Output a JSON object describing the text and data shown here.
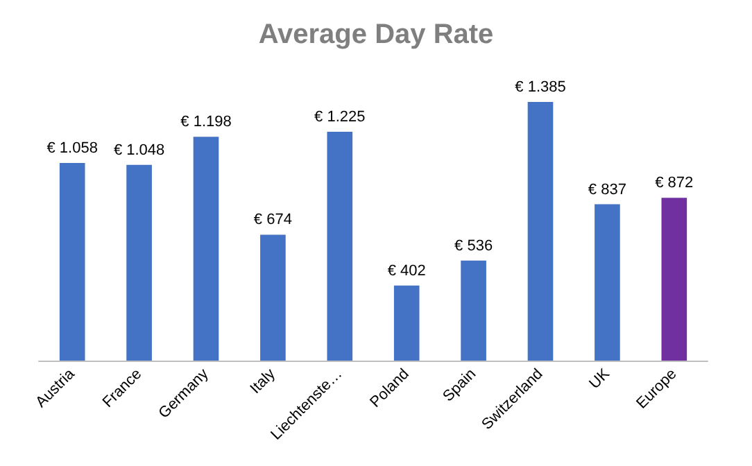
{
  "chart_data": {
    "type": "bar",
    "title": "Average Day Rate",
    "categories": [
      "Austria",
      "France",
      "Germany",
      "Italy",
      "Liechtenste…",
      "Poland",
      "Spain",
      "Switzerland",
      "UK",
      "Europe"
    ],
    "values": [
      1058,
      1048,
      1198,
      674,
      1225,
      402,
      536,
      1385,
      837,
      872
    ],
    "colors": [
      "#4472c4",
      "#4472c4",
      "#4472c4",
      "#4472c4",
      "#4472c4",
      "#4472c4",
      "#4472c4",
      "#4472c4",
      "#4472c4",
      "#7030a0"
    ],
    "value_labels": [
      "€ 1.058",
      "€ 1.048",
      "€ 1.198",
      "€ 674",
      "€ 1.225",
      "€ 402",
      "€ 536",
      "€ 1.385",
      "€ 837",
      "€ 872"
    ]
  }
}
